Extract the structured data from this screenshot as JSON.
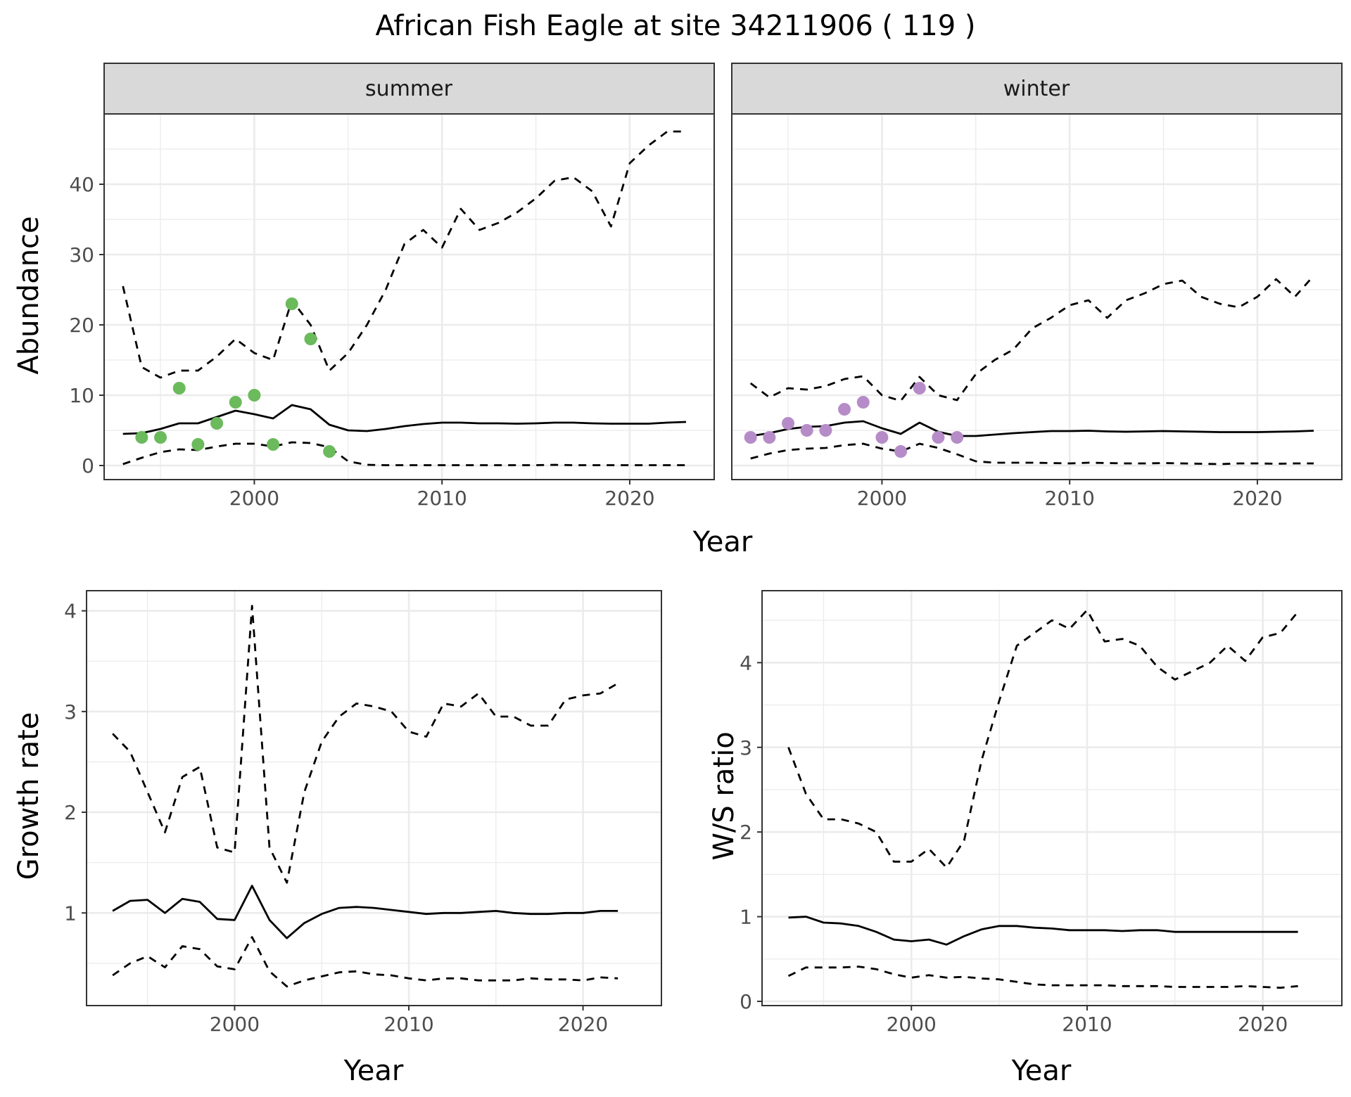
{
  "title": "African Fish Eagle at site 34211906 ( 119 )",
  "colors": {
    "summer_points": "#6BBA5C",
    "winter_points": "#B68CC8",
    "line": "#000000",
    "strip": "#D9D9D9",
    "grid": "#EBEBEB"
  },
  "chart_data": [
    {
      "type": "line",
      "panel": "summer",
      "strip_label": "summer",
      "xlabel": "Year",
      "ylabel": "Abundance",
      "xlim": [
        1992,
        2024.5
      ],
      "ylim": [
        -2,
        50
      ],
      "xticks": [
        2000,
        2010,
        2020
      ],
      "yticks": [
        0,
        10,
        20,
        30,
        40
      ],
      "grid": true,
      "x": [
        1993,
        1994,
        1995,
        1996,
        1997,
        1998,
        1999,
        2000,
        2001,
        2002,
        2003,
        2004,
        2005,
        2006,
        2007,
        2008,
        2009,
        2010,
        2011,
        2012,
        2013,
        2014,
        2015,
        2016,
        2017,
        2018,
        2019,
        2020,
        2021,
        2022,
        2023
      ],
      "series": [
        {
          "values": [
            4.5,
            4.6,
            5.2,
            6.0,
            6.0,
            6.9,
            7.8,
            7.3,
            6.7,
            8.6,
            8.0,
            5.8,
            5.0,
            4.9,
            5.2,
            5.6,
            5.9,
            6.1,
            6.1,
            6.0,
            6.0,
            5.95,
            6.0,
            6.1,
            6.1,
            6.0,
            5.95,
            5.95,
            5.95,
            6.1,
            6.2
          ],
          "style": "solid"
        },
        {
          "values": [
            25.5,
            14.0,
            12.5,
            13.5,
            13.5,
            15.5,
            18.0,
            16.0,
            15.0,
            23.5,
            20.0,
            13.5,
            16.0,
            20.0,
            25.0,
            31.5,
            33.5,
            31.0,
            36.5,
            33.5,
            34.5,
            36.0,
            38.0,
            40.5,
            41.0,
            39.0,
            34.0,
            43.0,
            45.5,
            47.5,
            47.5
          ],
          "style": "dashed"
        },
        {
          "values": [
            0.2,
            1.1,
            1.9,
            2.3,
            2.2,
            2.7,
            3.1,
            3.1,
            2.7,
            3.3,
            3.2,
            2.6,
            0.6,
            0.1,
            0.05,
            0.05,
            0.05,
            0.05,
            0.05,
            0.05,
            0.05,
            0.05,
            0.05,
            0.1,
            0.05,
            0.05,
            0.05,
            0.05,
            0.05,
            0.05,
            0.05
          ],
          "style": "dashed"
        }
      ],
      "points": {
        "x": [
          1994,
          1995,
          1996,
          1997,
          1998,
          1999,
          2000,
          2001,
          2002,
          2003,
          2004
        ],
        "y": [
          4,
          4,
          11,
          3,
          6,
          9,
          10,
          3,
          23,
          18,
          2
        ]
      }
    },
    {
      "type": "line",
      "panel": "winter",
      "strip_label": "winter",
      "xlabel": "Year",
      "ylabel": "",
      "xlim": [
        1992,
        2024.5
      ],
      "ylim": [
        -2,
        50
      ],
      "xticks": [
        2000,
        2010,
        2020
      ],
      "yticks": [
        0,
        10,
        20,
        30,
        40
      ],
      "grid": true,
      "x": [
        1993,
        1994,
        1995,
        1996,
        1997,
        1998,
        1999,
        2000,
        2001,
        2002,
        2003,
        2004,
        2005,
        2006,
        2007,
        2008,
        2009,
        2010,
        2011,
        2012,
        2013,
        2014,
        2015,
        2016,
        2017,
        2018,
        2019,
        2020,
        2021,
        2022,
        2023
      ],
      "series": [
        {
          "values": [
            4.2,
            4.6,
            5.2,
            5.5,
            5.6,
            6.1,
            6.3,
            5.3,
            4.5,
            6.1,
            4.8,
            4.2,
            4.2,
            4.4,
            4.6,
            4.75,
            4.9,
            4.9,
            4.95,
            4.85,
            4.8,
            4.85,
            4.9,
            4.85,
            4.8,
            4.75,
            4.75,
            4.75,
            4.8,
            4.85,
            4.95
          ],
          "style": "solid"
        },
        {
          "values": [
            11.7,
            9.7,
            11.0,
            10.8,
            11.3,
            12.3,
            12.7,
            10.0,
            9.2,
            12.6,
            10.0,
            9.3,
            13.0,
            15.0,
            16.5,
            19.5,
            21.0,
            22.8,
            23.5,
            21.0,
            23.5,
            24.5,
            25.8,
            26.3,
            24.0,
            23.0,
            22.5,
            24.0,
            26.5,
            24.0,
            27.0
          ],
          "style": "dashed"
        },
        {
          "values": [
            1.0,
            1.7,
            2.2,
            2.4,
            2.5,
            2.9,
            3.1,
            2.4,
            2.0,
            3.1,
            2.5,
            1.6,
            0.6,
            0.4,
            0.4,
            0.4,
            0.35,
            0.3,
            0.4,
            0.35,
            0.3,
            0.3,
            0.35,
            0.3,
            0.25,
            0.2,
            0.3,
            0.3,
            0.25,
            0.3,
            0.3
          ],
          "style": "dashed"
        }
      ],
      "points": {
        "x": [
          1993,
          1994,
          1995,
          1996,
          1997,
          1998,
          1999,
          2000,
          2001,
          2002,
          2003,
          2004
        ],
        "y": [
          4,
          4,
          6,
          5,
          5,
          8,
          9,
          4,
          2,
          11,
          4,
          4
        ]
      }
    },
    {
      "type": "line",
      "panel": "growth",
      "strip_label": "",
      "xlabel": "Year",
      "ylabel": "Growth rate",
      "xlim": [
        1991.5,
        2024.5
      ],
      "ylim": [
        0.08,
        4.2
      ],
      "xticks": [
        2000,
        2010,
        2020
      ],
      "yticks": [
        1,
        2,
        3,
        4
      ],
      "grid": true,
      "x": [
        1993,
        1994,
        1995,
        1996,
        1997,
        1998,
        1999,
        2000,
        2001,
        2002,
        2003,
        2004,
        2005,
        2006,
        2007,
        2008,
        2009,
        2010,
        2011,
        2012,
        2013,
        2014,
        2015,
        2016,
        2017,
        2018,
        2019,
        2020,
        2021,
        2022
      ],
      "series": [
        {
          "values": [
            1.02,
            1.12,
            1.13,
            1.0,
            1.14,
            1.11,
            0.94,
            0.93,
            1.27,
            0.93,
            0.75,
            0.9,
            0.99,
            1.05,
            1.06,
            1.05,
            1.03,
            1.01,
            0.99,
            1.0,
            1.0,
            1.01,
            1.02,
            1.0,
            0.99,
            0.99,
            1.0,
            1.0,
            1.02,
            1.02
          ],
          "style": "solid"
        },
        {
          "values": [
            2.78,
            2.6,
            2.2,
            1.8,
            2.35,
            2.45,
            1.65,
            1.6,
            4.05,
            1.65,
            1.3,
            2.2,
            2.7,
            2.95,
            3.08,
            3.05,
            3.0,
            2.8,
            2.75,
            3.08,
            3.05,
            3.18,
            2.95,
            2.95,
            2.86,
            2.86,
            3.12,
            3.16,
            3.18,
            3.28
          ],
          "style": "dashed"
        },
        {
          "values": [
            0.38,
            0.5,
            0.57,
            0.46,
            0.67,
            0.64,
            0.47,
            0.44,
            0.76,
            0.42,
            0.27,
            0.33,
            0.37,
            0.41,
            0.42,
            0.39,
            0.38,
            0.35,
            0.33,
            0.35,
            0.35,
            0.33,
            0.33,
            0.33,
            0.35,
            0.34,
            0.34,
            0.33,
            0.36,
            0.35
          ],
          "style": "dashed"
        }
      ]
    },
    {
      "type": "line",
      "panel": "ratio",
      "strip_label": "",
      "xlabel": "Year",
      "ylabel": "W/S ratio",
      "xlim": [
        1991.5,
        2024.5
      ],
      "ylim": [
        -0.05,
        4.85
      ],
      "xticks": [
        2000,
        2010,
        2020
      ],
      "yticks": [
        0,
        1,
        2,
        3,
        4
      ],
      "grid": true,
      "x": [
        1993,
        1994,
        1995,
        1996,
        1997,
        1998,
        1999,
        2000,
        2001,
        2002,
        2003,
        2004,
        2005,
        2006,
        2007,
        2008,
        2009,
        2010,
        2011,
        2012,
        2013,
        2014,
        2015,
        2016,
        2017,
        2018,
        2019,
        2020,
        2021,
        2022
      ],
      "series": [
        {
          "values": [
            0.99,
            1.0,
            0.93,
            0.92,
            0.89,
            0.82,
            0.73,
            0.71,
            0.73,
            0.67,
            0.77,
            0.85,
            0.89,
            0.89,
            0.87,
            0.86,
            0.84,
            0.84,
            0.84,
            0.83,
            0.84,
            0.84,
            0.82,
            0.82,
            0.82,
            0.82,
            0.82,
            0.82,
            0.82,
            0.82
          ],
          "style": "solid"
        },
        {
          "values": [
            3.0,
            2.45,
            2.15,
            2.15,
            2.1,
            2.0,
            1.65,
            1.65,
            1.8,
            1.58,
            1.9,
            2.85,
            3.55,
            4.2,
            4.35,
            4.5,
            4.4,
            4.62,
            4.25,
            4.28,
            4.2,
            3.95,
            3.8,
            3.9,
            4.0,
            4.2,
            4.02,
            4.3,
            4.35,
            4.6
          ],
          "style": "dashed"
        },
        {
          "values": [
            0.3,
            0.4,
            0.4,
            0.4,
            0.41,
            0.38,
            0.32,
            0.28,
            0.31,
            0.28,
            0.29,
            0.27,
            0.26,
            0.23,
            0.2,
            0.19,
            0.19,
            0.19,
            0.19,
            0.18,
            0.18,
            0.18,
            0.17,
            0.17,
            0.17,
            0.17,
            0.18,
            0.17,
            0.16,
            0.18
          ],
          "style": "dashed"
        }
      ]
    }
  ]
}
